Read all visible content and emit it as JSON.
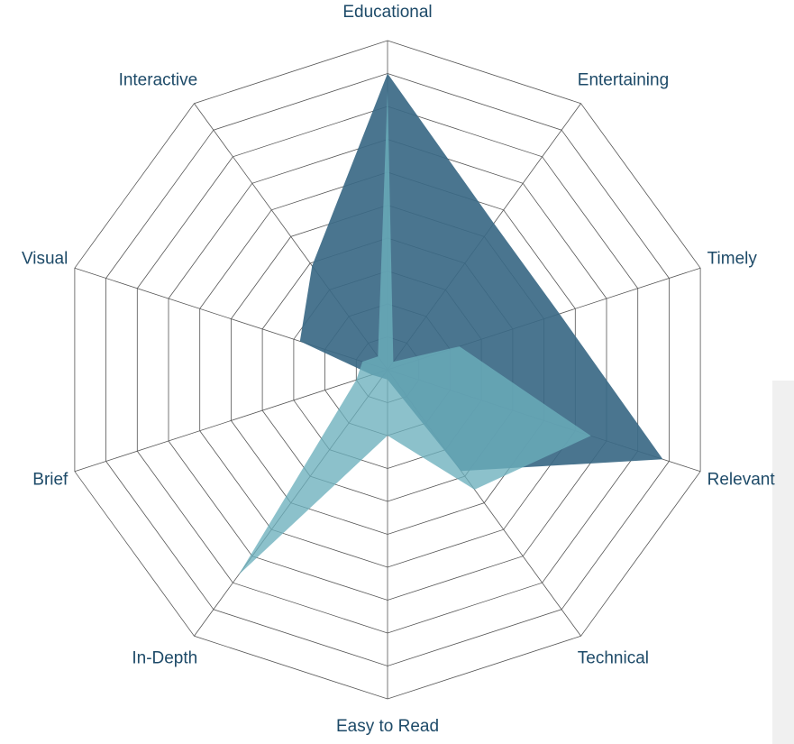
{
  "chart_data": {
    "type": "radar",
    "categories": [
      "Educational",
      "Entertaining",
      "Timely",
      "Relevant",
      "Technical",
      "Easy to Read",
      "In-Depth",
      "Brief",
      "Visual",
      "Interactive"
    ],
    "series": [
      {
        "color": "#3b6985",
        "values": [
          9.0,
          5.5,
          5.5,
          8.8,
          3.8,
          0.3,
          0.3,
          0.5,
          2.8,
          3.9
        ]
      },
      {
        "color": "#6cb0bc",
        "values": [
          8.5,
          0.3,
          2.3,
          6.5,
          4.5,
          2.0,
          7.7,
          1.0,
          0.8,
          0.5
        ]
      }
    ],
    "rlim": [
      0,
      10
    ],
    "rticks": [
      1,
      2,
      3,
      4,
      5,
      6,
      7,
      8,
      9,
      10
    ],
    "grid": true
  }
}
